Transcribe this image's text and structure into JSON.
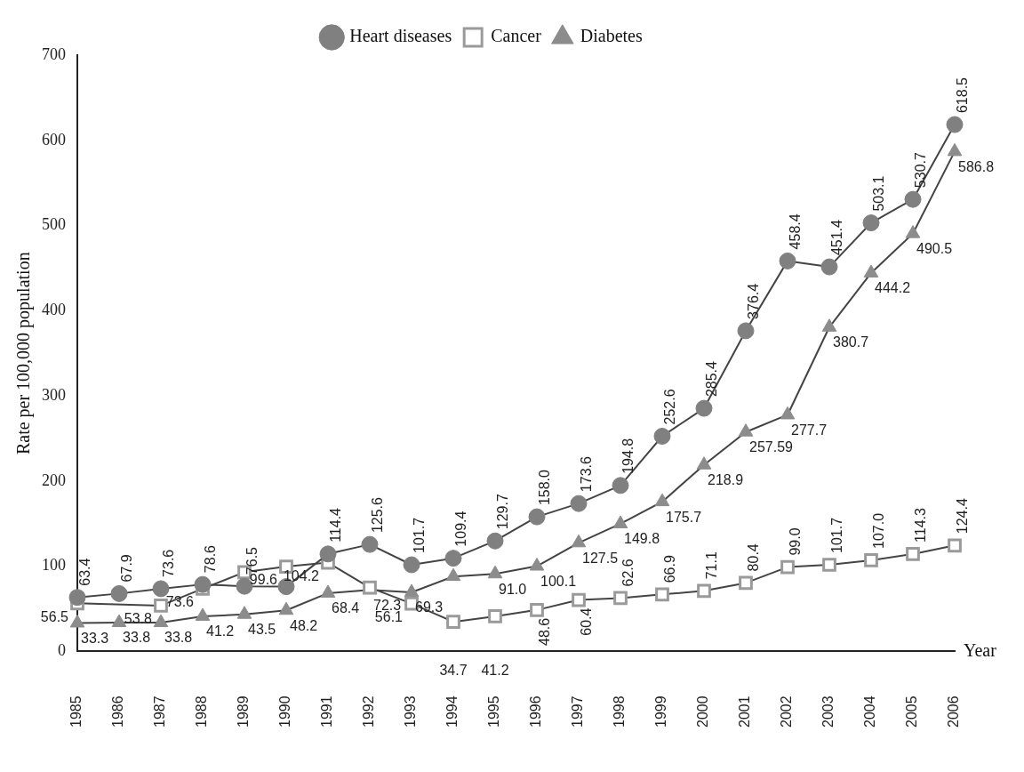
{
  "chart_data": {
    "type": "line",
    "xlabel": "Year",
    "ylabel": "Rate per 100,000 population",
    "categories": [
      "1985",
      "1986",
      "1987",
      "1988",
      "1989",
      "1990",
      "1991",
      "1992",
      "1993",
      "1994",
      "1995",
      "1996",
      "1997",
      "1998",
      "1999",
      "2000",
      "2001",
      "2002",
      "2003",
      "2004",
      "2005",
      "2006"
    ],
    "series": [
      {
        "name": "Heart diseases",
        "color": "#808080",
        "marker": "circle",
        "values": [
          63.4,
          67.9,
          73.6,
          78.6,
          76.5,
          76,
          114.4,
          125.6,
          101.7,
          109.4,
          129.7,
          158.0,
          173.6,
          194.8,
          252.6,
          285.4,
          376.4,
          458.4,
          451.4,
          503.1,
          530.7,
          618.5
        ],
        "value_labels": [
          "63.4",
          "67.9",
          "73.6",
          "78.6",
          "76.5",
          null,
          "114.4",
          "125.6",
          "101.7",
          "109.4",
          "129.7",
          "158.0",
          "173.6",
          "194.8",
          "252.6",
          "285.4",
          "376.4",
          "458.4",
          "451.4",
          "503.1",
          "530.7",
          "618.5"
        ]
      },
      {
        "name": "Cancer",
        "color": "#9a9a9a",
        "marker": "square",
        "values": [
          56.5,
          null,
          53.8,
          73.6,
          93,
          99.6,
          104.2,
          75,
          56.1,
          34.7,
          41.2,
          48.6,
          60.4,
          62.6,
          66.9,
          71.1,
          80.4,
          99.0,
          101.7,
          107.0,
          114.3,
          124.4
        ],
        "value_labels": [
          "56.5",
          null,
          "53.8",
          "73.6",
          null,
          "99.6",
          "104.2",
          null,
          "56.1",
          "34.7",
          "41.2",
          "48.6",
          "60.4",
          "62.6",
          "66.9",
          "71.1",
          "80.4",
          "99.0",
          "101.7",
          "107.0",
          "114.3",
          "124.4"
        ]
      },
      {
        "name": "Diabetes",
        "color": "#8c8c8c",
        "marker": "triangle",
        "values": [
          33.3,
          33.8,
          33.8,
          41.2,
          43.5,
          48.2,
          68.4,
          72.3,
          69.3,
          88,
          91.0,
          100.1,
          127.5,
          149.8,
          175.7,
          218.9,
          257.59,
          277.7,
          380.7,
          444.2,
          490.5,
          586.8
        ],
        "value_labels": [
          "33.3",
          "33.8",
          "33.8",
          "41.2",
          "43.5",
          "48.2",
          "68.4",
          "72.3",
          "69.3",
          null,
          "91.0",
          "100.1",
          "127.5",
          "149.8",
          "175.7",
          "218.9",
          "257.59",
          "277.7",
          "380.7",
          "444.2",
          "490.5",
          "586.8"
        ]
      }
    ],
    "ylim": [
      0,
      700
    ],
    "yticks": [
      0,
      100,
      200,
      300,
      400,
      500,
      600,
      700
    ],
    "grid": false,
    "legend": "top"
  }
}
